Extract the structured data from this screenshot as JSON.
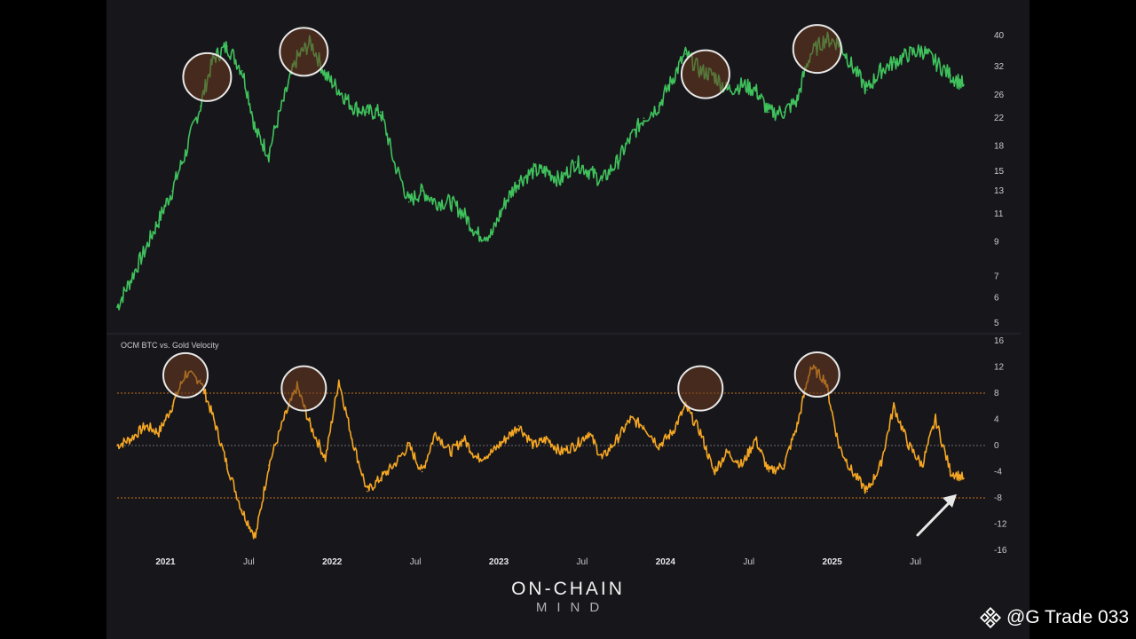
{
  "chart_data": [
    {
      "type": "line",
      "panel": "top",
      "scale": "log",
      "ylim": [
        5,
        40
      ],
      "yticks": [
        40,
        32,
        26,
        22,
        18,
        15,
        13,
        11,
        9,
        7,
        6,
        5
      ],
      "color": "#3fc25c",
      "grid": false,
      "x": [
        2020.71,
        2020.79,
        2020.88,
        2020.96,
        2021.04,
        2021.12,
        2021.21,
        2021.29,
        2021.37,
        2021.46,
        2021.54,
        2021.62,
        2021.71,
        2021.79,
        2021.87,
        2021.96,
        2022.04,
        2022.12,
        2022.21,
        2022.29,
        2022.37,
        2022.46,
        2022.54,
        2022.62,
        2022.71,
        2022.79,
        2022.87,
        2022.96,
        2023.04,
        2023.12,
        2023.21,
        2023.29,
        2023.37,
        2023.46,
        2023.54,
        2023.62,
        2023.71,
        2023.79,
        2023.87,
        2023.96,
        2024.04,
        2024.12,
        2024.21,
        2024.29,
        2024.37,
        2024.46,
        2024.54,
        2024.62,
        2024.71,
        2024.79,
        2024.87,
        2024.96,
        2025.04,
        2025.12,
        2025.21,
        2025.29,
        2025.37,
        2025.46,
        2025.54,
        2025.62,
        2025.71,
        2025.79
      ],
      "y": [
        5.6,
        6.8,
        8.5,
        10.5,
        13,
        17,
        24,
        34,
        37,
        31,
        20,
        17,
        25,
        34,
        38,
        30,
        27,
        24,
        23,
        23,
        16,
        12,
        13,
        12,
        12,
        11,
        9.5,
        9.5,
        12,
        14,
        15,
        15,
        14,
        16,
        15,
        14,
        16,
        19,
        22,
        24,
        29,
        35,
        31,
        30,
        27,
        28,
        27,
        23,
        23,
        25,
        35,
        39,
        38,
        32,
        27,
        31,
        33,
        35,
        36,
        33,
        30,
        28
      ]
    },
    {
      "type": "line",
      "panel": "bottom",
      "title": "OCM BTC vs. Gold Velocity",
      "ylim": [
        -16,
        16
      ],
      "yticks": [
        16,
        12,
        8,
        4,
        0,
        -4,
        -8,
        -12,
        -16
      ],
      "reference_lines": [
        8,
        0,
        -8
      ],
      "color": "#f5a623",
      "grid": false,
      "x": [
        2020.71,
        2020.79,
        2020.88,
        2020.96,
        2021.04,
        2021.12,
        2021.21,
        2021.29,
        2021.37,
        2021.46,
        2021.54,
        2021.62,
        2021.71,
        2021.79,
        2021.87,
        2021.96,
        2022.04,
        2022.12,
        2022.21,
        2022.29,
        2022.37,
        2022.46,
        2022.54,
        2022.62,
        2022.71,
        2022.79,
        2022.87,
        2022.96,
        2023.04,
        2023.12,
        2023.21,
        2023.29,
        2023.37,
        2023.46,
        2023.54,
        2023.62,
        2023.71,
        2023.79,
        2023.87,
        2023.96,
        2024.04,
        2024.12,
        2024.21,
        2024.29,
        2024.37,
        2024.46,
        2024.54,
        2024.62,
        2024.71,
        2024.79,
        2024.87,
        2024.96,
        2025.04,
        2025.12,
        2025.21,
        2025.29,
        2025.37,
        2025.46,
        2025.54,
        2025.62,
        2025.71,
        2025.79
      ],
      "y": [
        0,
        1,
        3,
        2,
        6,
        11,
        10,
        4,
        -3,
        -10,
        -14,
        -3,
        4,
        9,
        3,
        -2,
        10,
        1,
        -7,
        -5,
        -3,
        0,
        -4,
        2,
        -1,
        1,
        -2,
        -1,
        1,
        3,
        0,
        1,
        -1,
        0,
        2,
        -2,
        1,
        4,
        3,
        0,
        2,
        6,
        2,
        -4,
        -1,
        -3,
        1,
        -4,
        -3,
        3,
        12,
        10,
        0,
        -4,
        -7,
        -3,
        6,
        0,
        -3,
        4,
        -4,
        -5
      ]
    }
  ],
  "x_axis": {
    "labels": [
      {
        "text": "2021",
        "value": 2021.0,
        "year": true
      },
      {
        "text": "Jul",
        "value": 2021.5,
        "year": false
      },
      {
        "text": "2022",
        "value": 2022.0,
        "year": true
      },
      {
        "text": "Jul",
        "value": 2022.5,
        "year": false
      },
      {
        "text": "2023",
        "value": 2023.0,
        "year": true
      },
      {
        "text": "Jul",
        "value": 2023.5,
        "year": false
      },
      {
        "text": "2024",
        "value": 2024.0,
        "year": true
      },
      {
        "text": "Jul",
        "value": 2024.5,
        "year": false
      },
      {
        "text": "2025",
        "value": 2025.0,
        "year": true
      },
      {
        "text": "Jul",
        "value": 2025.5,
        "year": false
      }
    ]
  },
  "annotations": {
    "circle_color": "#e8e8e8",
    "circle_fill": "#6b3a1f",
    "top_circle_dates": [
      2021.25,
      2021.83,
      2024.24,
      2024.91
    ],
    "bottom_circle_dates": [
      2021.12,
      2021.83,
      2024.21,
      2024.91
    ],
    "arrow_date": 2025.79,
    "arrow_color": "#e8e8e8"
  },
  "brand": {
    "line1": "ON-CHAIN",
    "line2": "MIND"
  },
  "watermark": {
    "text": "@G Trade 033",
    "icon": "binance-logo-icon",
    "color": "#ffffff"
  },
  "colors": {
    "background": "#17171b",
    "outer": "#000000",
    "reference_line": "#c8721a",
    "zero_line": "#6b6b70"
  }
}
